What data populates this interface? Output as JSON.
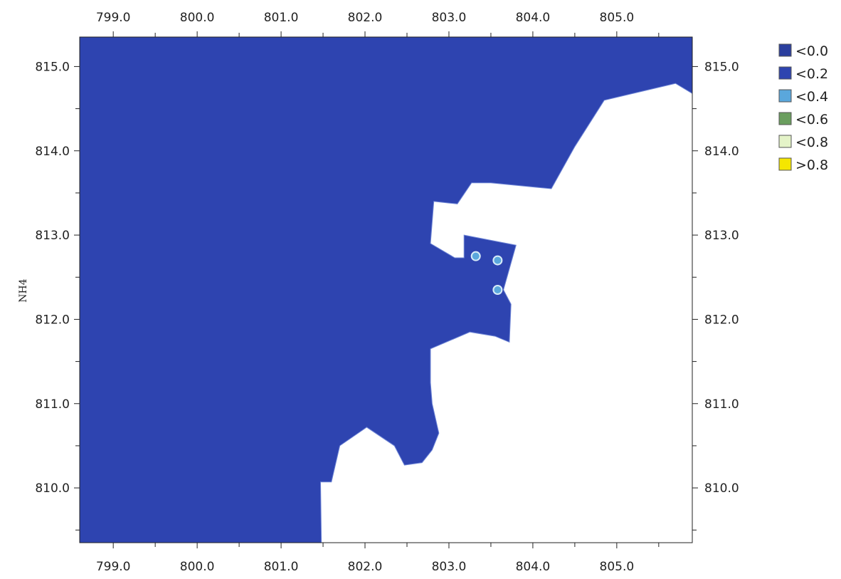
{
  "chart_data": {
    "type": "heatmap",
    "ylabel": "NH4",
    "xlabel": "",
    "xlim": [
      798.6,
      805.9
    ],
    "ylim": [
      809.35,
      815.35
    ],
    "x_ticks": [
      "799.0",
      "800.0",
      "801.0",
      "802.0",
      "803.0",
      "804.0",
      "805.0"
    ],
    "y_ticks": [
      "810.0",
      "811.0",
      "812.0",
      "813.0",
      "814.0",
      "815.0"
    ],
    "legend": [
      {
        "label": "<0.0",
        "color": "#2b3f9e"
      },
      {
        "label": "<0.2",
        "color": "#2e44b0"
      },
      {
        "label": "<0.4",
        "color": "#5aa7dc"
      },
      {
        "label": "<0.6",
        "color": "#6a9e5e"
      },
      {
        "label": "<0.8",
        "color": "#e4f3c8"
      },
      {
        "label": ">0.8",
        "color": "#f5e600"
      }
    ],
    "field_value_class": "<0.2",
    "land_color": "#ffffff",
    "sample_points": [
      {
        "x": 803.32,
        "y": 812.75,
        "class": "<0.4"
      },
      {
        "x": 803.58,
        "y": 812.7,
        "class": "<0.4"
      },
      {
        "x": 803.58,
        "y": 812.35,
        "class": "<0.4"
      }
    ],
    "land_boundary": [
      [
        801.48,
        809.35
      ],
      [
        801.47,
        810.07
      ],
      [
        801.6,
        810.07
      ],
      [
        801.7,
        810.5
      ],
      [
        802.02,
        810.72
      ],
      [
        802.35,
        810.5
      ],
      [
        802.47,
        810.27
      ],
      [
        802.68,
        810.3
      ],
      [
        802.8,
        810.45
      ],
      [
        802.88,
        810.65
      ],
      [
        802.8,
        811.0
      ],
      [
        802.78,
        811.25
      ],
      [
        802.78,
        811.65
      ],
      [
        803.25,
        811.85
      ],
      [
        803.55,
        811.8
      ],
      [
        803.72,
        811.73
      ],
      [
        803.74,
        812.18
      ],
      [
        803.65,
        812.35
      ],
      [
        803.8,
        812.88
      ],
      [
        803.18,
        813.0
      ],
      [
        803.18,
        812.73
      ],
      [
        803.07,
        812.73
      ],
      [
        802.78,
        812.9
      ],
      [
        802.82,
        813.4
      ],
      [
        803.0,
        813.38
      ],
      [
        803.1,
        813.37
      ],
      [
        803.27,
        813.62
      ],
      [
        803.5,
        813.62
      ],
      [
        804.22,
        813.55
      ],
      [
        804.5,
        814.05
      ],
      [
        804.85,
        814.6
      ],
      [
        805.7,
        814.8
      ],
      [
        805.9,
        814.68
      ],
      [
        805.9,
        809.35
      ]
    ]
  }
}
